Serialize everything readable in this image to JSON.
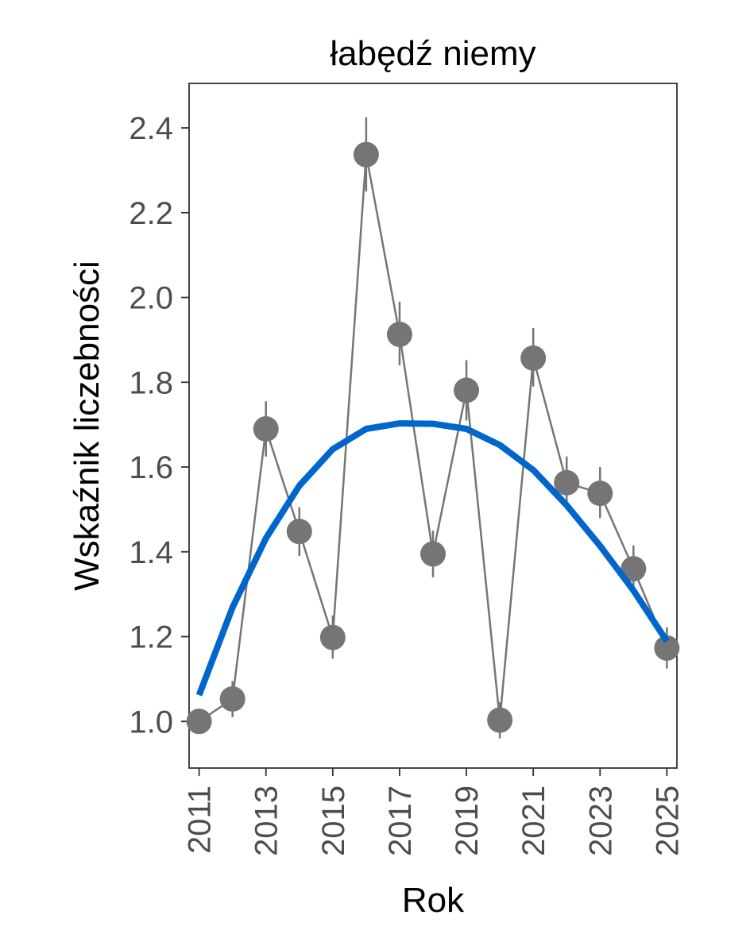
{
  "chart_data": {
    "type": "line",
    "title": "łabędź niemy",
    "xlabel": "Rok",
    "ylabel": "Wskaźnik liczebności",
    "xlim": [
      2010.7,
      2025.3
    ],
    "ylim": [
      0.89,
      2.505
    ],
    "x_ticks": [
      2011,
      2013,
      2015,
      2017,
      2019,
      2021,
      2023,
      2025
    ],
    "x_tick_labels": [
      "2011",
      "2013",
      "2015",
      "2017",
      "2019",
      "2021",
      "2023",
      "2025"
    ],
    "y_ticks": [
      1.0,
      1.2,
      1.4,
      1.6,
      1.8,
      2.0,
      2.2,
      2.4
    ],
    "y_tick_labels": [
      "1.0",
      "1.2",
      "1.4",
      "1.6",
      "1.8",
      "2.0",
      "2.2",
      "2.4"
    ],
    "grid": false,
    "series": [
      {
        "type": "points-with-errorbars",
        "color": "#757575",
        "x": [
          2011,
          2012,
          2013,
          2014,
          2015,
          2016,
          2017,
          2018,
          2019,
          2020,
          2021,
          2022,
          2023,
          2024,
          2025
        ],
        "y": [
          1.0,
          1.053,
          1.69,
          1.448,
          1.198,
          2.337,
          1.913,
          1.395,
          1.781,
          1.003,
          1.857,
          1.563,
          1.538,
          1.36,
          1.173
        ],
        "err_low": [
          1.0,
          1.01,
          1.625,
          1.39,
          1.148,
          2.25,
          1.84,
          1.34,
          1.71,
          0.96,
          1.79,
          1.5,
          1.48,
          1.305,
          1.125
        ],
        "err_high": [
          1.0,
          1.095,
          1.755,
          1.505,
          1.25,
          2.425,
          1.99,
          1.45,
          1.852,
          1.045,
          1.928,
          1.625,
          1.6,
          1.415,
          1.222
        ]
      },
      {
        "type": "trend-curve",
        "color": "#0066cc",
        "x": [
          2011,
          2012,
          2013,
          2014,
          2015,
          2016,
          2017,
          2018,
          2019,
          2020,
          2021,
          2022,
          2023,
          2024,
          2025
        ],
        "y": [
          1.062,
          1.269,
          1.432,
          1.556,
          1.642,
          1.69,
          1.703,
          1.702,
          1.69,
          1.652,
          1.593,
          1.51,
          1.414,
          1.309,
          1.189
        ]
      }
    ]
  }
}
